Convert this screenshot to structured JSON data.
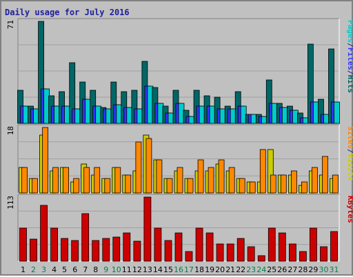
{
  "title": "Daily usage for July 2016",
  "colors": {
    "background": "#c0c0c0",
    "panel_border": "#ffffff",
    "panel_shadow": "#808080",
    "grid": "#a0a0a0",
    "title": "#1e1e9c",
    "pages": "#00cccc",
    "files": "#3333ff",
    "hits": "#006666",
    "sites": "#ff8800",
    "visits": "#cccc00",
    "kbytes": "#cc0000",
    "weekend": "#00804a",
    "weekday": "#000000"
  },
  "legend": {
    "panel1": [
      "Pages",
      "/",
      "Files",
      "/",
      "Hits"
    ],
    "panel2": [
      "Sites",
      "/",
      "Visits"
    ],
    "panel3": [
      "KBytes"
    ]
  },
  "chart_data": {
    "type": "bar",
    "title": "Daily usage for July 2016",
    "categories": [
      "1",
      "2",
      "3",
      "4",
      "5",
      "6",
      "7",
      "8",
      "9",
      "10",
      "11",
      "12",
      "13",
      "14",
      "15",
      "16",
      "17",
      "18",
      "19",
      "20",
      "21",
      "22",
      "23",
      "24",
      "25",
      "26",
      "27",
      "28",
      "29",
      "30",
      "31"
    ],
    "weekend_days": [
      2,
      3,
      9,
      10,
      16,
      17,
      23,
      24,
      30,
      31
    ],
    "panels": [
      {
        "max_label": "71",
        "ylim": [
          0,
          71
        ],
        "series": [
          {
            "name": "Hits",
            "color": "#006666",
            "values": [
              23,
              12,
              71,
              19,
              22,
              42,
              29,
              23,
              11,
              29,
              22,
              23,
              43,
              25,
              12,
              23,
              9,
              23,
              19,
              18,
              12,
              22,
              6,
              6,
              30,
              14,
              12,
              7,
              55,
              17,
              52
            ]
          },
          {
            "name": "Files",
            "color": "#3333ff",
            "values": [
              12,
              10,
              24,
              12,
              12,
              10,
              17,
              12,
              10,
              13,
              11,
              10,
              26,
              14,
              7,
              14,
              5,
              12,
              12,
              10,
              10,
              12,
              6,
              5,
              14,
              11,
              9,
              4,
              15,
              6,
              15
            ]
          },
          {
            "name": "Pages",
            "color": "#00cccc",
            "values": [
              12,
              10,
              24,
              12,
              12,
              10,
              17,
              12,
              10,
              13,
              11,
              10,
              26,
              14,
              7,
              14,
              5,
              12,
              12,
              10,
              10,
              12,
              6,
              5,
              14,
              11,
              9,
              4,
              15,
              6,
              15
            ]
          }
        ]
      },
      {
        "max_label": "18",
        "ylim": [
          0,
          18
        ],
        "series": [
          {
            "name": "Visits",
            "color": "#cccc00",
            "values": [
              7,
              4,
              16,
              6,
              7,
              3,
              8,
              5,
              4,
              7,
              5,
              6,
              16,
              9,
              4,
              6,
              4,
              6,
              6,
              8,
              6,
              4,
              3,
              3,
              12,
              5,
              5,
              2,
              6,
              5,
              4
            ]
          },
          {
            "name": "Sites",
            "color": "#ff8800",
            "values": [
              7,
              4,
              18,
              7,
              7,
              4,
              7,
              7,
              4,
              7,
              5,
              14,
              15,
              9,
              4,
              7,
              4,
              9,
              7,
              9,
              7,
              4,
              3,
              12,
              5,
              5,
              6,
              3,
              7,
              10,
              5
            ]
          }
        ]
      },
      {
        "max_label": "113",
        "ylim": [
          0,
          113
        ],
        "series": [
          {
            "name": "KBytes",
            "color": "#cc0000",
            "values": [
              58,
              39,
              98,
              58,
              40,
              36,
              84,
              36,
              40,
              43,
              50,
              35,
              113,
              58,
              36,
              50,
              17,
              58,
              50,
              30,
              30,
              40,
              25,
              10,
              58,
              50,
              30,
              17,
              58,
              25,
              52
            ]
          }
        ]
      }
    ]
  }
}
